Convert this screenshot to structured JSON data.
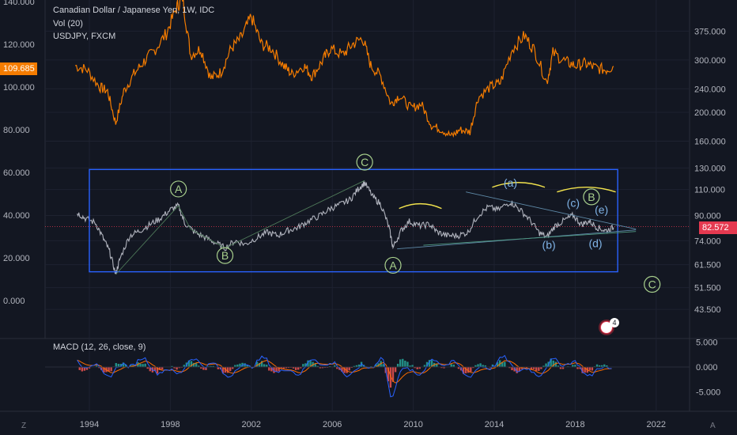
{
  "legend": {
    "main": "Canadian Dollar / Japanese Yen, 1W, IDC",
    "volume": "Vol (20)",
    "overlay": "USDJPY, FXCM",
    "macd": "MACD (12, 26, close, 9)"
  },
  "price_tags": {
    "left": "109.685",
    "right": "82.572"
  },
  "corner_labels": {
    "bottom_left": "Z",
    "bottom_right": "A"
  },
  "notification_count": "4",
  "colors": {
    "background": "#131722",
    "grid": "#1e2230",
    "cadjpy_line": "#b0b3bd",
    "usdjpy_line": "#f57c00",
    "box": "#2962ff",
    "wave_green": "#a8d08d",
    "wave_blue": "#7fb3e6",
    "arc_yellow": "#f2e34d",
    "price_line": "#e53950",
    "macd_line": "#2962ff",
    "signal_line": "#ff6d00",
    "hist_up": "#26a69a",
    "hist_down": "#ef5350"
  },
  "chart_data": [
    {
      "type": "line",
      "title": "Canadian Dollar / Japanese Yen, 1W, IDC",
      "x_axis": {
        "ticks": [
          "1994",
          "1998",
          "2002",
          "2006",
          "2010",
          "2014",
          "2018",
          "2022"
        ]
      },
      "y_axis_right": {
        "ticks": [
          "375.000",
          "300.000",
          "240.000",
          "200.000",
          "160.000",
          "130.000",
          "110.000",
          "90.000",
          "74.000",
          "61.500",
          "51.500",
          "43.500"
        ],
        "scale": "log"
      },
      "series": [
        {
          "name": "Canadian Dollar / Japanese Yen",
          "points": [
            [
              1993.4,
              92
            ],
            [
              1993.8,
              88
            ],
            [
              1994.3,
              85
            ],
            [
              1994.7,
              75
            ],
            [
              1995.0,
              68
            ],
            [
              1995.3,
              57
            ],
            [
              1995.5,
              64
            ],
            [
              1996.0,
              77
            ],
            [
              1996.5,
              80
            ],
            [
              1997.0,
              84
            ],
            [
              1997.5,
              88
            ],
            [
              1998.0,
              94
            ],
            [
              1998.4,
              97
            ],
            [
              1998.7,
              85
            ],
            [
              1999.2,
              79
            ],
            [
              1999.7,
              76
            ],
            [
              2000.2,
              73
            ],
            [
              2000.7,
              70
            ],
            [
              2001.2,
              74
            ],
            [
              2001.7,
              72
            ],
            [
              2002.3,
              76
            ],
            [
              2002.8,
              79
            ],
            [
              2003.3,
              77
            ],
            [
              2003.8,
              80
            ],
            [
              2004.3,
              82
            ],
            [
              2004.8,
              86
            ],
            [
              2005.4,
              90
            ],
            [
              2005.9,
              95
            ],
            [
              2006.4,
              98
            ],
            [
              2006.9,
              102
            ],
            [
              2007.3,
              111
            ],
            [
              2007.6,
              116
            ],
            [
              2008.0,
              104
            ],
            [
              2008.4,
              98
            ],
            [
              2008.8,
              82
            ],
            [
              2009.0,
              70
            ],
            [
              2009.4,
              80
            ],
            [
              2009.8,
              86
            ],
            [
              2010.3,
              83
            ],
            [
              2010.8,
              84
            ],
            [
              2011.2,
              79
            ],
            [
              2011.7,
              77
            ],
            [
              2012.2,
              77
            ],
            [
              2012.7,
              79
            ],
            [
              2013.2,
              90
            ],
            [
              2013.7,
              96
            ],
            [
              2014.2,
              94
            ],
            [
              2014.8,
              100
            ],
            [
              2015.2,
              95
            ],
            [
              2015.7,
              88
            ],
            [
              2016.2,
              79
            ],
            [
              2016.6,
              76
            ],
            [
              2017.0,
              83
            ],
            [
              2017.5,
              87
            ],
            [
              2017.9,
              90
            ],
            [
              2018.3,
              84
            ],
            [
              2018.7,
              86
            ],
            [
              2019.1,
              82
            ],
            [
              2019.5,
              80
            ],
            [
              2019.9,
              82
            ]
          ]
        }
      ],
      "price_marker": "82.572",
      "annotations": {
        "wave_labels_green": [
          {
            "label": "A",
            "x": 1998.4,
            "y": 110.5
          },
          {
            "label": "B",
            "x": 2000.7,
            "y": 66
          },
          {
            "label": "C",
            "x": 2007.6,
            "y": 136
          },
          {
            "label": "A",
            "x": 2009.0,
            "y": 61.2
          },
          {
            "label": "B",
            "x": 2018.8,
            "y": 104
          },
          {
            "label": "C",
            "x": 2021.8,
            "y": 52.8
          }
        ],
        "wave_labels_blue": [
          {
            "label": "(a)",
            "x": 2014.8,
            "y": 116
          },
          {
            "label": "(b)",
            "x": 2016.7,
            "y": 71.8
          },
          {
            "label": "(c)",
            "x": 2017.9,
            "y": 99.2
          },
          {
            "label": "(d)",
            "x": 2019.0,
            "y": 72.6
          },
          {
            "label": "(e)",
            "x": 2019.3,
            "y": 94.2
          }
        ]
      }
    },
    {
      "type": "line",
      "title": "USDJPY, FXCM",
      "y_axis_left": {
        "ticks": [
          "140.000",
          "120.000",
          "100.000",
          "80.000",
          "60.000",
          "40.000",
          "20.000",
          "0.000"
        ]
      },
      "series": [
        {
          "name": "USDJPY, FXCM",
          "points": [
            [
              1993.3,
              110
            ],
            [
              1993.9,
              108
            ],
            [
              1994.5,
              100
            ],
            [
              1994.9,
              98
            ],
            [
              1995.3,
              83
            ],
            [
              1995.7,
              98
            ],
            [
              1996.2,
              106
            ],
            [
              1996.7,
              112
            ],
            [
              1997.2,
              117
            ],
            [
              1997.8,
              125
            ],
            [
              1998.3,
              137
            ],
            [
              1998.6,
              142
            ],
            [
              1999.0,
              115
            ],
            [
              1999.5,
              118
            ],
            [
              2000.0,
              104
            ],
            [
              2000.5,
              107
            ],
            [
              2001.0,
              118
            ],
            [
              2001.5,
              123
            ],
            [
              2002.0,
              133
            ],
            [
              2002.5,
              120
            ],
            [
              2003.0,
              118
            ],
            [
              2003.6,
              110
            ],
            [
              2004.0,
              106
            ],
            [
              2004.6,
              110
            ],
            [
              2005.0,
              105
            ],
            [
              2005.5,
              112
            ],
            [
              2005.9,
              118
            ],
            [
              2006.5,
              115
            ],
            [
              2007.0,
              120
            ],
            [
              2007.5,
              123
            ],
            [
              2007.9,
              110
            ],
            [
              2008.4,
              105
            ],
            [
              2008.9,
              92
            ],
            [
              2009.3,
              96
            ],
            [
              2009.9,
              90
            ],
            [
              2010.4,
              92
            ],
            [
              2010.9,
              82
            ],
            [
              2011.4,
              80
            ],
            [
              2011.9,
              77
            ],
            [
              2012.3,
              80
            ],
            [
              2012.8,
              79
            ],
            [
              2013.2,
              95
            ],
            [
              2013.8,
              100
            ],
            [
              2014.3,
              102
            ],
            [
              2014.9,
              118
            ],
            [
              2015.5,
              124
            ],
            [
              2016.0,
              117
            ],
            [
              2016.6,
              102
            ],
            [
              2016.9,
              116
            ],
            [
              2017.5,
              112
            ],
            [
              2018.0,
              110
            ],
            [
              2018.5,
              111
            ],
            [
              2019.0,
              109
            ],
            [
              2019.5,
              108
            ],
            [
              2019.9,
              109.7
            ]
          ]
        }
      ],
      "price_marker": "109.685"
    },
    {
      "type": "line",
      "title": "MACD (12, 26, close, 9)",
      "y_axis_right": {
        "ticks": [
          "5.000",
          "0.000",
          "-5.000"
        ]
      },
      "series": [
        {
          "name": "MACD"
        },
        {
          "name": "Signal"
        },
        {
          "name": "Histogram"
        }
      ]
    }
  ]
}
